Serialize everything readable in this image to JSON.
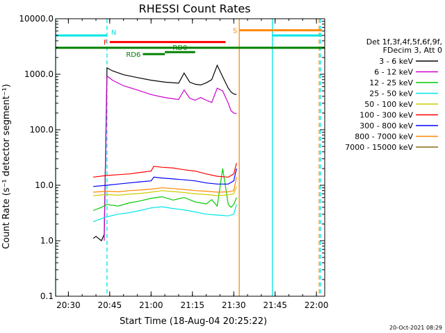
{
  "chart_data": {
    "type": "line",
    "title": "RHESSI Count Rates",
    "xlabel": "Start Time (18-Aug-04 20:25:22)",
    "ylabel": "Count Rate (s⁻¹ detector segment⁻¹)",
    "y_scale": "log",
    "ylim": [
      0.1,
      10000
    ],
    "y_ticks": [
      "0.1",
      "1.0",
      "10.0",
      "100.0",
      "1000.0",
      "10000.0"
    ],
    "xlim": [
      "20:25:22",
      "22:03:00"
    ],
    "x_ticks": [
      "20:30",
      "20:45",
      "21:00",
      "21:15",
      "21:30",
      "21:45",
      "22:00"
    ],
    "grid": false,
    "legend_position": "right",
    "legend_header": [
      "Det 1f,3f,4f,5f,6f,9f,",
      "FDecim 3, Att 0"
    ],
    "footer_date": "20-Oct-2021 08:29",
    "series": [
      {
        "name": "3 - 6 keV",
        "color": "#000000",
        "x": [
          "20:39",
          "20:40",
          "20:42",
          "20:43",
          "20:44",
          "20:46",
          "20:50",
          "20:55",
          "21:00",
          "21:05",
          "21:10",
          "21:12",
          "21:14",
          "21:16",
          "21:18",
          "21:20",
          "21:22",
          "21:24",
          "21:26",
          "21:28",
          "21:29",
          "21:30",
          "21:31"
        ],
        "y": [
          1.1,
          1.2,
          1.0,
          1.3,
          1300,
          1150,
          980,
          870,
          780,
          720,
          690,
          1050,
          720,
          660,
          640,
          700,
          800,
          1450,
          900,
          560,
          480,
          440,
          430
        ]
      },
      {
        "name": "6 - 12 keV",
        "color": "#cc00cc",
        "x": [
          "20:43",
          "20:44",
          "20:46",
          "20:50",
          "20:55",
          "21:00",
          "21:05",
          "21:10",
          "21:12",
          "21:14",
          "21:16",
          "21:18",
          "21:20",
          "21:22",
          "21:24",
          "21:26",
          "21:28",
          "21:29",
          "21:30",
          "21:31"
        ],
        "y": [
          1.0,
          930,
          780,
          620,
          520,
          430,
          380,
          350,
          520,
          370,
          340,
          380,
          340,
          310,
          560,
          500,
          300,
          220,
          200,
          195
        ]
      },
      {
        "name": "12 - 25 keV",
        "color": "#00cc00",
        "x": [
          "20:39",
          "20:42",
          "20:44",
          "20:48",
          "20:52",
          "20:56",
          "21:00",
          "21:04",
          "21:08",
          "21:12",
          "21:16",
          "21:20",
          "21:22",
          "21:24",
          "21:26",
          "21:28",
          "21:29",
          "21:30",
          "21:31"
        ],
        "y": [
          3.5,
          4.0,
          4.5,
          4.2,
          4.8,
          5.2,
          5.8,
          6.2,
          5.4,
          6.0,
          5.0,
          4.6,
          5.5,
          4.2,
          20,
          4.5,
          4.0,
          4.5,
          6.0
        ]
      },
      {
        "name": "25 - 50 keV",
        "color": "#00e5e5",
        "x": [
          "20:39",
          "20:42",
          "20:44",
          "20:48",
          "20:52",
          "20:56",
          "21:00",
          "21:04",
          "21:08",
          "21:12",
          "21:16",
          "21:20",
          "21:24",
          "21:28",
          "21:30",
          "21:31"
        ],
        "y": [
          2.2,
          2.5,
          2.7,
          3.0,
          3.2,
          3.5,
          3.9,
          4.1,
          3.8,
          3.6,
          3.3,
          3.0,
          2.9,
          2.8,
          3.0,
          4.5
        ]
      },
      {
        "name": "50 - 100 keV",
        "color": "#cccc00",
        "x": [
          "20:39",
          "20:44",
          "20:48",
          "20:52",
          "20:56",
          "21:00",
          "21:04",
          "21:08",
          "21:12",
          "21:16",
          "21:20",
          "21:24",
          "21:28",
          "21:30",
          "21:31"
        ],
        "y": [
          6.5,
          6.8,
          6.6,
          6.9,
          7.1,
          7.5,
          8.0,
          7.7,
          7.4,
          7.0,
          6.8,
          6.5,
          6.7,
          7.0,
          9.5
        ]
      },
      {
        "name": "100 - 300 keV",
        "color": "#ff0000",
        "x": [
          "20:39",
          "20:44",
          "20:48",
          "20:52",
          "20:56",
          "21:00",
          "21:01",
          "21:04",
          "21:08",
          "21:12",
          "21:16",
          "21:20",
          "21:24",
          "21:28",
          "21:30",
          "21:31"
        ],
        "y": [
          14,
          15,
          15.5,
          16,
          17,
          18,
          22,
          21,
          20.5,
          19,
          18,
          16,
          14.5,
          14,
          16,
          25
        ]
      },
      {
        "name": "300 - 800 keV",
        "color": "#0000ff",
        "x": [
          "20:39",
          "20:44",
          "20:48",
          "20:52",
          "20:56",
          "21:00",
          "21:01",
          "21:04",
          "21:08",
          "21:12",
          "21:16",
          "21:20",
          "21:24",
          "21:28",
          "21:30",
          "21:31"
        ],
        "y": [
          9.5,
          10,
          10.5,
          11,
          11.5,
          12,
          14,
          13.5,
          13,
          12.5,
          12,
          11,
          10.5,
          10.5,
          12,
          20
        ]
      },
      {
        "name": "800 - 7000 keV",
        "color": "#ff8800",
        "x": [
          "20:39",
          "20:44",
          "20:48",
          "20:52",
          "20:56",
          "21:00",
          "21:04",
          "21:08",
          "21:12",
          "21:16",
          "21:20",
          "21:24",
          "21:28",
          "21:30",
          "21:31"
        ],
        "y": [
          7.5,
          7.8,
          7.6,
          8.0,
          8.2,
          8.5,
          9.0,
          8.7,
          8.4,
          8.0,
          7.8,
          7.5,
          7.6,
          8.0,
          14
        ]
      },
      {
        "name": "7000 - 15000 keV",
        "color": "#8b6914",
        "x": [],
        "y": []
      }
    ],
    "vertical_markers": [
      {
        "time": "20:25:22",
        "color": "#00e5e5",
        "style": "solid"
      },
      {
        "time": "20:44",
        "color": "#00e5e5",
        "style": "dashed"
      },
      {
        "time": "21:32",
        "color": "#ff8800",
        "style": "solid"
      },
      {
        "time": "21:44",
        "color": "#00e5e5",
        "style": "solid"
      },
      {
        "time": "22:01",
        "color": "#ff8800",
        "style": "dashed"
      },
      {
        "time": "22:01",
        "color": "#00e5e5",
        "style": "dashed"
      }
    ],
    "flag_bars": [
      {
        "label": "N",
        "color": "#00e5e5",
        "start": "20:25:22",
        "end": "20:44",
        "level": 5000,
        "label_side": "right"
      },
      {
        "label": "N",
        "color": "#00e5e5",
        "start": "21:44",
        "end": "22:02",
        "level": 5000,
        "label_side": "none"
      },
      {
        "label": "S",
        "color": "#ff8800",
        "start": "21:32",
        "end": "22:02",
        "level": 6200,
        "label_side": "left"
      },
      {
        "label": "F",
        "color": "#ff0000",
        "start": "20:45",
        "end": "21:27",
        "level": 3800,
        "label_side": "left"
      },
      {
        "label": "",
        "color": "#008000",
        "start": "20:25:22",
        "end": "22:03",
        "level": 3000,
        "label_side": "none"
      },
      {
        "label": "RD0",
        "color": "#008000",
        "start": "21:05",
        "end": "21:16",
        "level": 2500,
        "label_side": "top"
      },
      {
        "label": "RD6",
        "color": "#008000",
        "start": "20:57",
        "end": "21:05",
        "level": 2300,
        "label_side": "left"
      }
    ]
  }
}
